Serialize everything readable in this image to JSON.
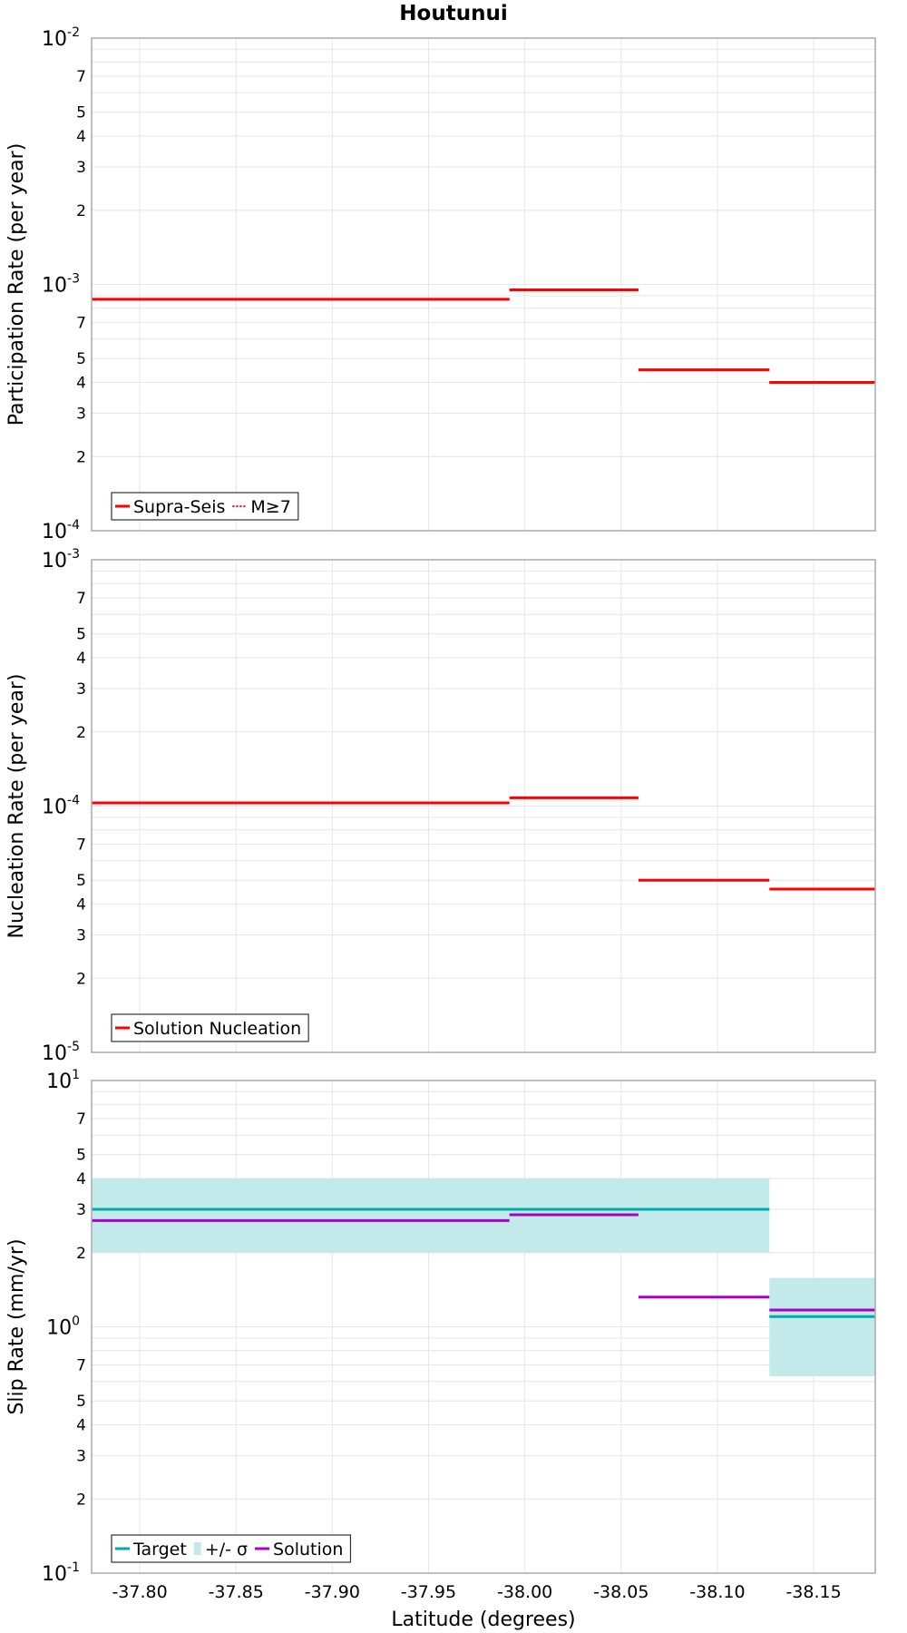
{
  "figure": {
    "title": "Houtunui",
    "xlabel": "Latitude (degrees)"
  },
  "colors": {
    "red": "#ff0000",
    "target": "#00aaaa",
    "sigma_band": "#c2eaea",
    "solution": "#aa00cc",
    "grid": "#e6e6e6",
    "frame": "#aaaaaa"
  },
  "chart_data": [
    {
      "type": "line",
      "style": "step",
      "ylabel": "Participation Rate (per year)",
      "yscale": "log",
      "ylim": [
        0.0001,
        0.01
      ],
      "xlim": [
        -37.775,
        -38.182
      ],
      "x_ticks": [
        "-37.80",
        "-37.85",
        "-37.90",
        "-37.95",
        "-38.00",
        "-38.05",
        "-38.10",
        "-38.15"
      ],
      "grid": true,
      "legend_position": "bottom-left",
      "legend": [
        {
          "label": "Supra-Seis",
          "style": "solid",
          "color": "#ff0000"
        },
        {
          "label": "M≥7",
          "style": "dotted",
          "color": "#ff0000"
        }
      ],
      "series": [
        {
          "name": "Supra-Seis",
          "segments": [
            {
              "x0": -37.775,
              "x1": -37.992,
              "y": 0.00087
            },
            {
              "x0": -37.992,
              "x1": -38.059,
              "y": 0.00095
            },
            {
              "x0": -38.059,
              "x1": -38.127,
              "y": 0.00045
            },
            {
              "x0": -38.127,
              "x1": -38.182,
              "y": 0.0004
            }
          ]
        },
        {
          "name": "M≥7",
          "segments": [
            {
              "x0": -37.775,
              "x1": -37.992,
              "y": 0.00087
            },
            {
              "x0": -37.992,
              "x1": -38.059,
              "y": 0.00095
            },
            {
              "x0": -38.059,
              "x1": -38.127,
              "y": 0.00045
            },
            {
              "x0": -38.127,
              "x1": -38.182,
              "y": 0.0004
            }
          ]
        }
      ]
    },
    {
      "type": "line",
      "style": "step",
      "ylabel": "Nucleation Rate (per year)",
      "yscale": "log",
      "ylim": [
        1e-05,
        0.001
      ],
      "xlim": [
        -37.775,
        -38.182
      ],
      "x_ticks": [
        "-37.80",
        "-37.85",
        "-37.90",
        "-37.95",
        "-38.00",
        "-38.05",
        "-38.10",
        "-38.15"
      ],
      "grid": true,
      "legend_position": "bottom-left",
      "legend": [
        {
          "label": "Solution Nucleation",
          "style": "solid",
          "color": "#ff0000"
        }
      ],
      "series": [
        {
          "name": "Solution Nucleation",
          "segments": [
            {
              "x0": -37.775,
              "x1": -37.992,
              "y": 0.000103
            },
            {
              "x0": -37.992,
              "x1": -38.059,
              "y": 0.000108
            },
            {
              "x0": -38.059,
              "x1": -38.127,
              "y": 5e-05
            },
            {
              "x0": -38.127,
              "x1": -38.182,
              "y": 4.6e-05
            }
          ]
        }
      ]
    },
    {
      "type": "line",
      "style": "step",
      "ylabel": "Slip Rate (mm/yr)",
      "yscale": "log",
      "ylim": [
        0.1,
        10
      ],
      "xlim": [
        -37.775,
        -38.182
      ],
      "x_ticks": [
        "-37.80",
        "-37.85",
        "-37.90",
        "-37.95",
        "-38.00",
        "-38.05",
        "-38.10",
        "-38.15"
      ],
      "grid": true,
      "legend_position": "bottom-left",
      "legend": [
        {
          "label": "Target",
          "style": "solid",
          "color": "#00aaaa"
        },
        {
          "label": "+/- σ",
          "style": "band",
          "color": "#c2eaea"
        },
        {
          "label": "Solution",
          "style": "solid",
          "color": "#aa00cc"
        }
      ],
      "bands": [
        {
          "name": "+/- σ",
          "segments": [
            {
              "x0": -37.775,
              "x1": -38.127,
              "y_low": 2.0,
              "y_high": 4.0
            },
            {
              "x0": -38.127,
              "x1": -38.182,
              "y_low": 0.63,
              "y_high": 1.58
            }
          ]
        }
      ],
      "series": [
        {
          "name": "Target",
          "segments": [
            {
              "x0": -37.775,
              "x1": -38.127,
              "y": 3.0
            },
            {
              "x0": -38.127,
              "x1": -38.182,
              "y": 1.1
            }
          ]
        },
        {
          "name": "Solution",
          "segments": [
            {
              "x0": -37.775,
              "x1": -37.992,
              "y": 2.7
            },
            {
              "x0": -37.992,
              "x1": -38.059,
              "y": 2.85
            },
            {
              "x0": -38.059,
              "x1": -38.127,
              "y": 1.32
            },
            {
              "x0": -38.127,
              "x1": -38.182,
              "y": 1.17
            }
          ]
        }
      ]
    }
  ]
}
